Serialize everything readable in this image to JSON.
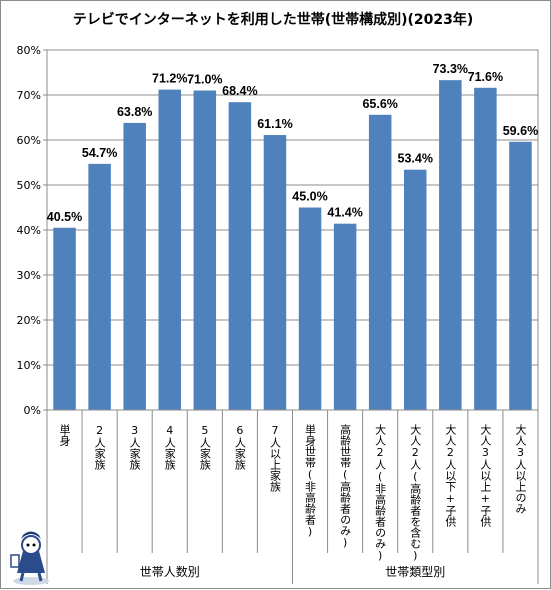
{
  "chart_data": {
    "type": "bar",
    "title": "テレビでインターネットを利用した世帯(世帯構成別)(2023年)",
    "categories": [
      "単身",
      "2人家族",
      "3人家族",
      "4人家族",
      "5人家族",
      "6人家族",
      "7人以上家族",
      "単身世帯(非高齢者)",
      "高齢世帯(高齢者のみ)",
      "大人2人(非高齢者のみ)",
      "大人2人(高齢者を含む)",
      "大人2人以下+子供",
      "大人3人以上+子供",
      "大人3人以上のみ"
    ],
    "values": [
      40.5,
      54.7,
      63.8,
      71.2,
      71.0,
      68.4,
      61.1,
      45.0,
      41.4,
      65.6,
      53.4,
      73.3,
      71.6,
      59.6
    ],
    "data_labels": [
      "40.5%",
      "54.7%",
      "63.8%",
      "71.2%",
      "71.0%",
      "68.4%",
      "61.1%",
      "45.0%",
      "41.4%",
      "65.6%",
      "53.4%",
      "73.3%",
      "71.6%",
      "59.6%"
    ],
    "ylim": [
      0,
      80
    ],
    "yticks": [
      "0%",
      "10%",
      "20%",
      "30%",
      "40%",
      "50%",
      "60%",
      "70%",
      "80%"
    ],
    "groups": [
      {
        "label": "世帯人数別",
        "count": 7
      },
      {
        "label": "世帯類型別",
        "count": 7
      }
    ],
    "bar_color": "#4f81bd",
    "grid": true
  }
}
